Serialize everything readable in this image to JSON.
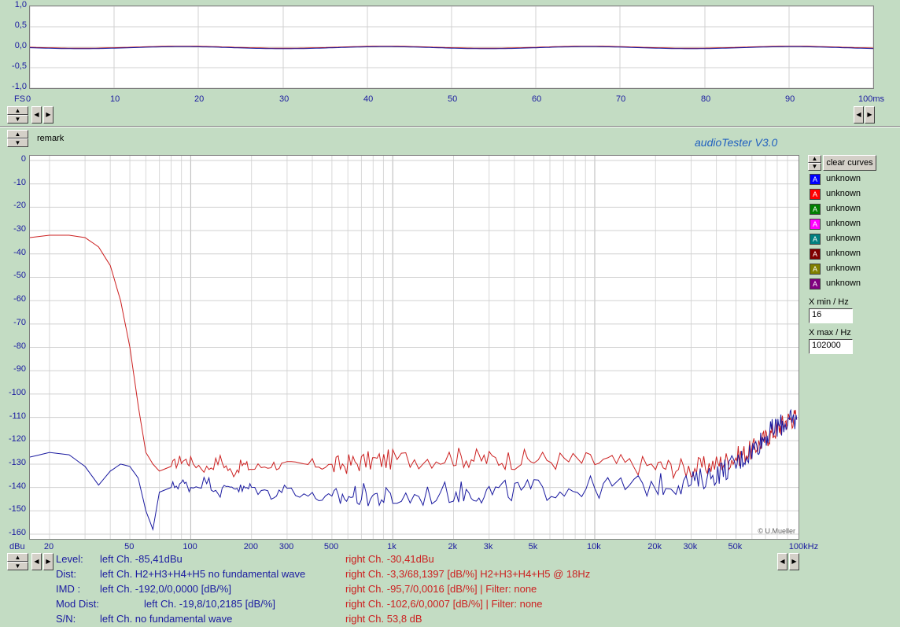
{
  "app": {
    "brand": "audioTester  V3.0",
    "copyright": "© U.Mueller",
    "remark_label": "remark"
  },
  "top_plot": {
    "y_ticks": [
      "1,0",
      "0,5",
      "0,0",
      "-0,5",
      "-1,0"
    ],
    "y_unit": "FS",
    "x_ticks": [
      "0",
      "10",
      "20",
      "30",
      "40",
      "50",
      "60",
      "70",
      "80",
      "90",
      "100ms"
    ]
  },
  "main_plot": {
    "y_ticks": [
      "0",
      "-10",
      "-20",
      "-30",
      "-40",
      "-50",
      "-60",
      "-70",
      "-80",
      "-90",
      "-100",
      "-110",
      "-120",
      "-130",
      "-140",
      "-150",
      "-160"
    ],
    "y_unit": "dBu",
    "x_ticks": [
      "20",
      "50",
      "100",
      "200",
      "300",
      "500",
      "1k",
      "2k",
      "3k",
      "5k",
      "10k",
      "20k",
      "30k",
      "50k",
      "100kHz"
    ]
  },
  "chart_data": {
    "type": "line",
    "xlabel": "",
    "ylabel": "dBu",
    "x_scale": "log",
    "xlim": [
      16,
      102000
    ],
    "ylim": [
      -160,
      0
    ],
    "grid": true,
    "series": [
      {
        "color": "#cc2020",
        "x": [
          16,
          20,
          25,
          30,
          35,
          40,
          45,
          50,
          55,
          60,
          65,
          70,
          80,
          90,
          100,
          120,
          140,
          160,
          180,
          200,
          250,
          300,
          400,
          500,
          700,
          1000,
          2000,
          3000,
          5000,
          10000,
          20000,
          30000,
          40000,
          50000,
          60000,
          70000,
          80000,
          90000,
          100000
        ],
        "values": [
          -33,
          -32,
          -32,
          -33,
          -37,
          -45,
          -60,
          -80,
          -105,
          -125,
          -130,
          -133,
          -131,
          -128,
          -129,
          -132,
          -128,
          -134,
          -130,
          -132,
          -130,
          -131,
          -130,
          -131,
          -129,
          -128,
          -127,
          -128,
          -128,
          -129,
          -131,
          -132,
          -130,
          -127,
          -124,
          -119,
          -115,
          -111,
          -110
        ]
      },
      {
        "color": "#1a1aa0",
        "x": [
          16,
          20,
          25,
          30,
          35,
          40,
          45,
          50,
          55,
          60,
          65,
          70,
          80,
          90,
          100,
          120,
          140,
          160,
          180,
          200,
          250,
          300,
          400,
          500,
          700,
          1000,
          2000,
          3000,
          5000,
          10000,
          20000,
          30000,
          40000,
          50000,
          60000,
          70000,
          80000,
          90000,
          100000
        ],
        "values": [
          -127,
          -125,
          -126,
          -131,
          -139,
          -133,
          -130,
          -131,
          -136,
          -150,
          -158,
          -142,
          -140,
          -138,
          -140,
          -137,
          -142,
          -139,
          -141,
          -140,
          -143,
          -140,
          -144,
          -145,
          -143,
          -145,
          -142,
          -142,
          -141,
          -140,
          -139,
          -138,
          -134,
          -130,
          -124,
          -118,
          -114,
          -112,
          -111
        ]
      }
    ]
  },
  "legend": {
    "clear_curves_label": "clear curves",
    "items": [
      {
        "label": "unknown",
        "color": "#0000ff"
      },
      {
        "label": "unknown",
        "color": "#ff0000"
      },
      {
        "label": "unknown",
        "color": "#008000"
      },
      {
        "label": "unknown",
        "color": "#ff00ff"
      },
      {
        "label": "unknown",
        "color": "#008080"
      },
      {
        "label": "unknown",
        "color": "#800000"
      },
      {
        "label": "unknown",
        "color": "#808000"
      },
      {
        "label": "unknown",
        "color": "#800080"
      }
    ],
    "icon_char": "A"
  },
  "controls": {
    "xmin_label": "X min / Hz",
    "xmin_value": "16",
    "xmax_label": "X max / Hz",
    "xmax_value": "102000"
  },
  "status": {
    "rows": [
      {
        "label": "Level:",
        "left": "left Ch. -85,41dBu",
        "right": "right Ch. -30,41dBu"
      },
      {
        "label": "Dist:",
        "left": "left Ch. H2+H3+H4+H5 no fundamental wave",
        "right": "right Ch. -3,3/68,1397 [dB/%] H2+H3+H4+H5 @ 18Hz"
      },
      {
        "label": "IMD  :",
        "left": "left Ch. -192,0/0,0000 [dB/%]",
        "right": "right Ch. -95,7/0,0016 [dB/%] |   Filter: none"
      },
      {
        "label": "Mod Dist:",
        "left": "left Ch. -19,8/10,2185 [dB/%]",
        "right": "right Ch. -102,6/0,0007 [dB/%] |   Filter: none"
      },
      {
        "label": "S/N:",
        "left": "left Ch.  no fundamental wave",
        "right": "right Ch. 53,8 dB"
      }
    ]
  }
}
